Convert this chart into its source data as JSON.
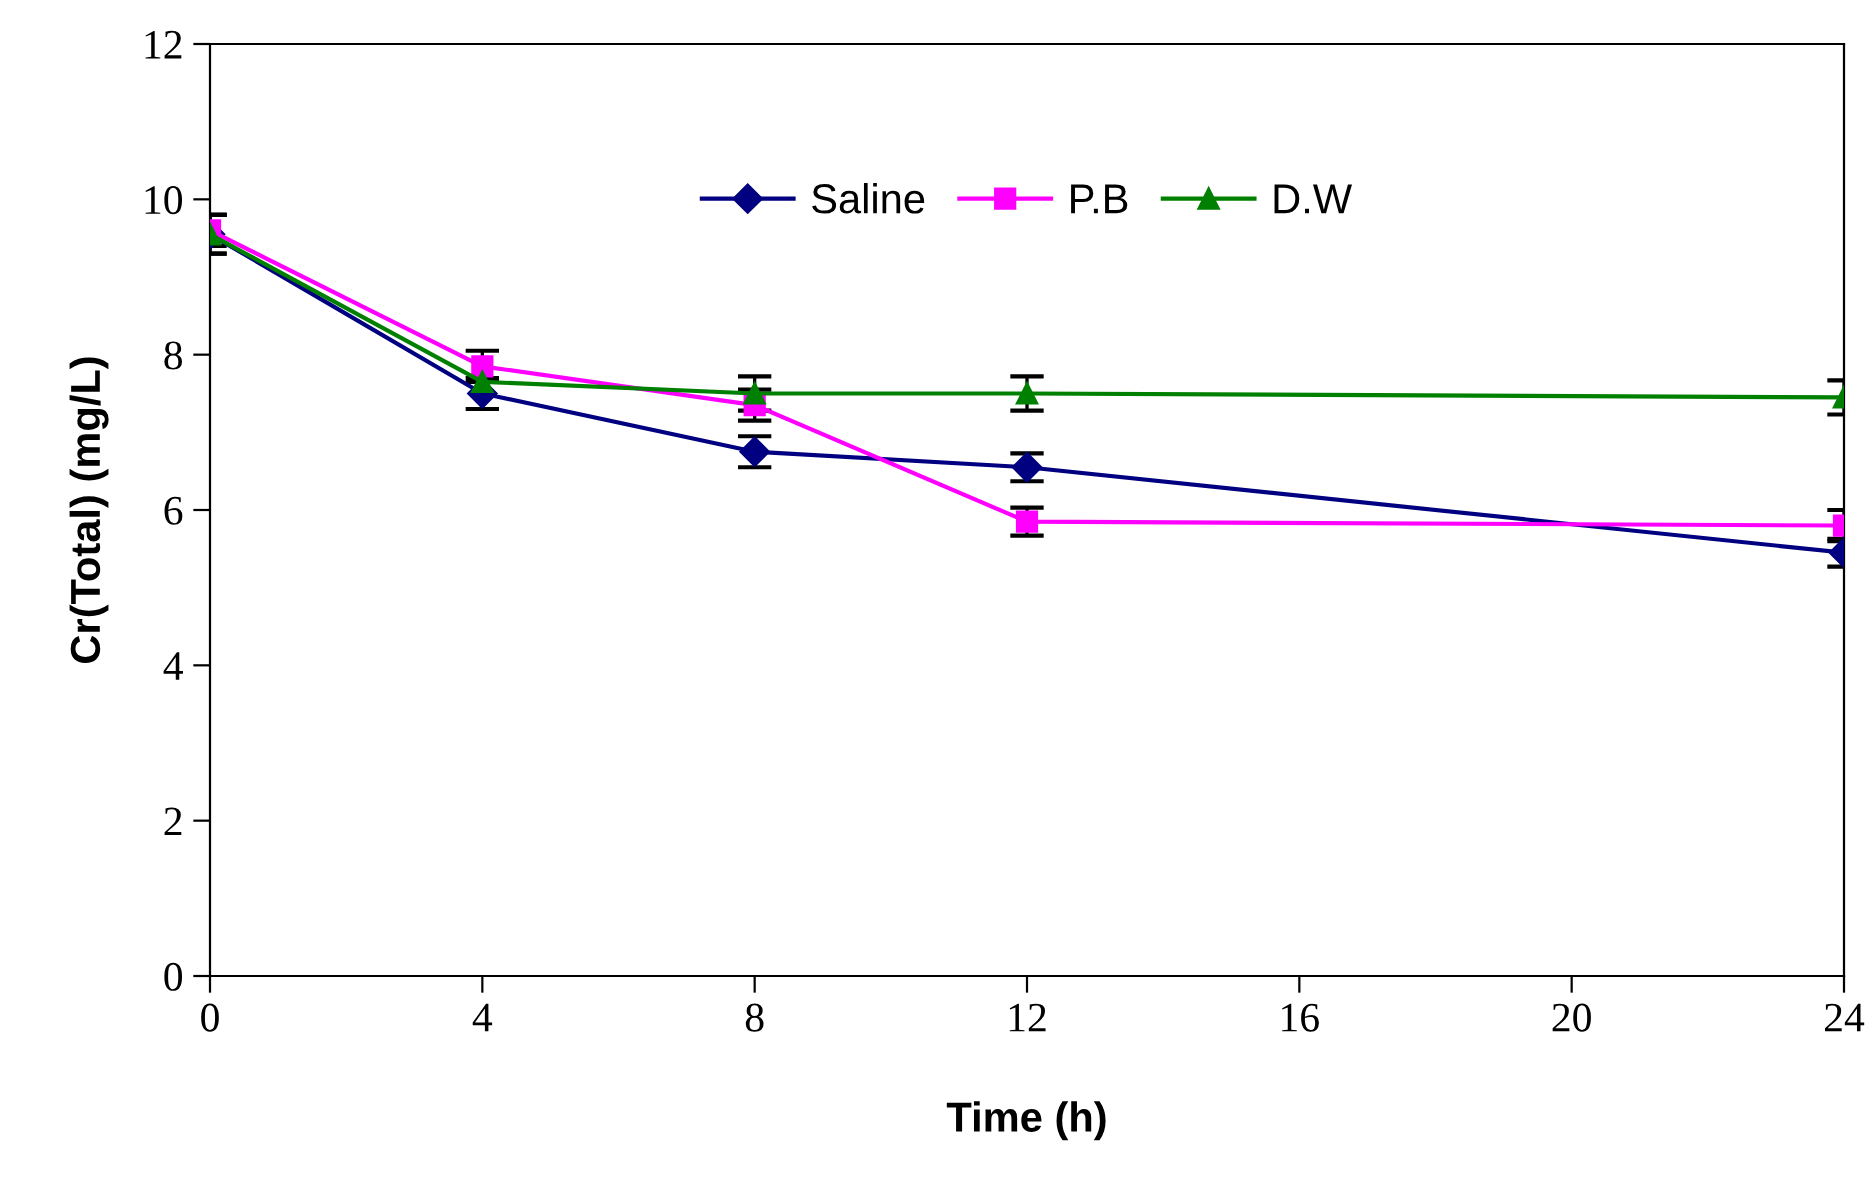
{
  "chart_data": {
    "type": "line",
    "xlabel": "Time (h)",
    "ylabel": "Cr(Total) (mg/L)",
    "x": [
      0,
      4,
      8,
      12,
      24
    ],
    "series": [
      {
        "name": "Saline",
        "color": "#000080",
        "marker": "diamond",
        "values": [
          9.55,
          7.5,
          6.75,
          6.55,
          5.45
        ],
        "errors": [
          0.25,
          0.2,
          0.2,
          0.18,
          0.18
        ]
      },
      {
        "name": "P.B",
        "color": "#ff00ff",
        "marker": "square",
        "values": [
          9.6,
          7.85,
          7.35,
          5.85,
          5.8
        ],
        "errors": [
          0.2,
          0.2,
          0.2,
          0.18,
          0.2
        ]
      },
      {
        "name": "D.W",
        "color": "#008000",
        "marker": "triangle",
        "values": [
          9.55,
          7.65,
          7.5,
          7.5,
          7.45
        ],
        "errors": [
          0.25,
          null,
          0.22,
          0.22,
          0.22
        ]
      }
    ],
    "xlim": [
      0,
      24
    ],
    "xticks": [
      0,
      4,
      8,
      12,
      16,
      20,
      24
    ],
    "ylim": [
      0,
      12
    ],
    "yticks": [
      0,
      2,
      4,
      6,
      8,
      10,
      12
    ],
    "grid": false,
    "legend": "top",
    "line_style": "solid"
  }
}
